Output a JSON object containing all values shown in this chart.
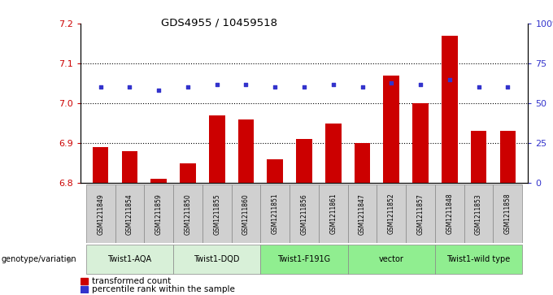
{
  "title": "GDS4955 / 10459518",
  "samples": [
    "GSM1211849",
    "GSM1211854",
    "GSM1211859",
    "GSM1211850",
    "GSM1211855",
    "GSM1211860",
    "GSM1211851",
    "GSM1211856",
    "GSM1211861",
    "GSM1211847",
    "GSM1211852",
    "GSM1211857",
    "GSM1211848",
    "GSM1211853",
    "GSM1211858"
  ],
  "bar_values": [
    6.89,
    6.88,
    6.81,
    6.85,
    6.97,
    6.96,
    6.86,
    6.91,
    6.95,
    6.9,
    7.07,
    7.0,
    7.17,
    6.93,
    6.93
  ],
  "percentile_values": [
    60,
    60,
    58,
    60,
    62,
    62,
    60,
    60,
    62,
    60,
    63,
    62,
    65,
    60,
    60
  ],
  "bar_color": "#cc0000",
  "percentile_color": "#3333cc",
  "ylim_left": [
    6.8,
    7.2
  ],
  "ylim_right": [
    0,
    100
  ],
  "yticks_left": [
    6.8,
    6.9,
    7.0,
    7.1,
    7.2
  ],
  "yticks_right": [
    0,
    25,
    50,
    75,
    100
  ],
  "groups": [
    {
      "label": "Twist1-AQA",
      "start": 0,
      "end": 3,
      "color": "#d8f0d8"
    },
    {
      "label": "Twist1-DQD",
      "start": 3,
      "end": 6,
      "color": "#d8f0d8"
    },
    {
      "label": "Twist1-F191G",
      "start": 6,
      "end": 9,
      "color": "#90ee90"
    },
    {
      "label": "vector",
      "start": 9,
      "end": 12,
      "color": "#90ee90"
    },
    {
      "label": "Twist1-wild type",
      "start": 12,
      "end": 15,
      "color": "#90ee90"
    }
  ],
  "genotype_label": "genotype/variation",
  "legend_bar_label": "transformed count",
  "legend_pct_label": "percentile rank within the sample",
  "bar_bottom": 6.8,
  "dotted_grid": [
    6.9,
    7.0,
    7.1
  ],
  "sample_box_color": "#d0d0d0",
  "background_color": "#ffffff"
}
